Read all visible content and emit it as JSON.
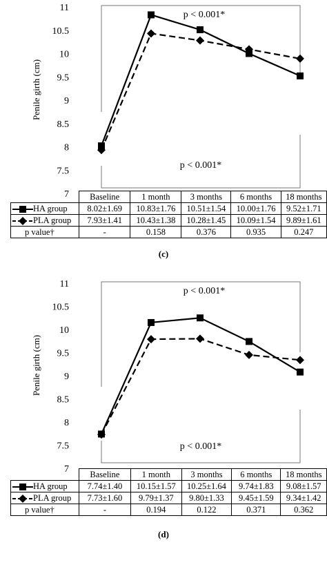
{
  "chart_data": [
    {
      "type": "line",
      "panel_label": "(c)",
      "ylabel": "Penile girth (cm)",
      "ylim": [
        7,
        11
      ],
      "yticks": [
        "7",
        "7.5",
        "8",
        "8.5",
        "9",
        "9.5",
        "10",
        "10.5",
        "11"
      ],
      "categories": [
        "Baseline",
        "1 month",
        "3 months",
        "6 months",
        "18 months"
      ],
      "series": [
        {
          "name": "HA group",
          "values": [
            8.02,
            10.83,
            10.51,
            10.0,
            9.52
          ],
          "line": "solid",
          "marker": "square",
          "table": [
            "8.02±1.69",
            "10.83±1.76",
            "10.51±1.54",
            "10.00±1.76",
            "9.52±1.71"
          ]
        },
        {
          "name": "PLA group",
          "values": [
            7.93,
            10.43,
            10.28,
            10.09,
            9.89
          ],
          "line": "dashed",
          "marker": "diamond",
          "table": [
            "7.93±1.41",
            "10.43±1.38",
            "10.28±1.45",
            "10.09±1.54",
            "9.89±1.61"
          ]
        }
      ],
      "pvalue_label": "p value†",
      "pvalues": [
        "-",
        "0.158",
        "0.376",
        "0.935",
        "0.247"
      ],
      "annotation_top": "p < 0.001*",
      "annotation_bottom": "p < 0.001*"
    },
    {
      "type": "line",
      "panel_label": "(d)",
      "ylabel": "Penile girth (cm)",
      "ylim": [
        7,
        11
      ],
      "yticks": [
        "7",
        "7.5",
        "8",
        "8.5",
        "9",
        "9.5",
        "10",
        "10.5",
        "11"
      ],
      "categories": [
        "Baseline",
        "1 month",
        "3 months",
        "6 months",
        "18 months"
      ],
      "series": [
        {
          "name": "HA group",
          "values": [
            7.74,
            10.15,
            10.25,
            9.74,
            9.08
          ],
          "line": "solid",
          "marker": "square",
          "table": [
            "7.74±1.40",
            "10.15±1.57",
            "10.25±1.64",
            "9.74±1.83",
            "9.08±1.57"
          ]
        },
        {
          "name": "PLA group",
          "values": [
            7.73,
            9.79,
            9.8,
            9.45,
            9.34
          ],
          "line": "dashed",
          "marker": "diamond",
          "table": [
            "7.73±1.60",
            "9.79±1.37",
            "9.80±1.33",
            "9.45±1.59",
            "9.34±1.42"
          ]
        }
      ],
      "pvalue_label": "p value†",
      "pvalues": [
        "-",
        "0.194",
        "0.122",
        "0.371",
        "0.362"
      ],
      "annotation_top": "p < 0.001*",
      "annotation_bottom": "p < 0.001*"
    }
  ]
}
